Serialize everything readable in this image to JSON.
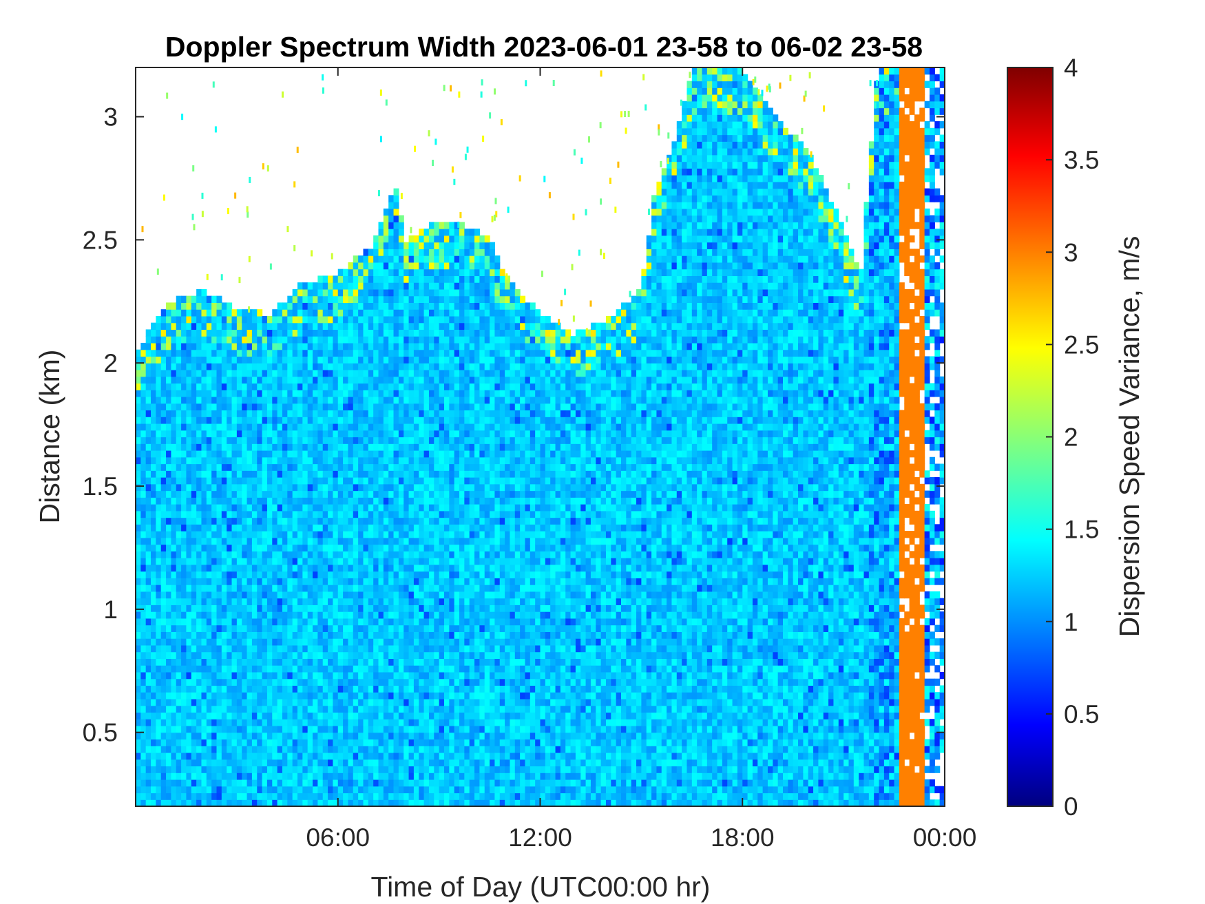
{
  "chart_data": {
    "type": "heatmap",
    "title": "Doppler Spectrum Width 2023-06-01 23-58 to 06-02 23-58",
    "xlabel": "Time of Day (UTC00:00 hr)",
    "ylabel": "Distance (km)",
    "colorbar_label": "Dispersion Speed Variance, m/s",
    "colormap": "jet",
    "xlim_hours": [
      0,
      24
    ],
    "ylim_km": [
      0.2,
      3.2
    ],
    "clim": [
      0,
      4
    ],
    "x_ticks": [
      {
        "value": 6,
        "label": "06:00"
      },
      {
        "value": 12,
        "label": "12:00"
      },
      {
        "value": 18,
        "label": "18:00"
      },
      {
        "value": 24,
        "label": "00:00"
      }
    ],
    "y_ticks": [
      {
        "value": 0.5,
        "label": "0.5"
      },
      {
        "value": 1,
        "label": "1"
      },
      {
        "value": 1.5,
        "label": "1.5"
      },
      {
        "value": 2,
        "label": "2"
      },
      {
        "value": 2.5,
        "label": "2.5"
      },
      {
        "value": 3,
        "label": "3"
      }
    ],
    "colorbar_ticks": [
      {
        "value": 0,
        "label": "0"
      },
      {
        "value": 0.5,
        "label": "0.5"
      },
      {
        "value": 1,
        "label": "1"
      },
      {
        "value": 1.5,
        "label": "1.5"
      },
      {
        "value": 2,
        "label": "2"
      },
      {
        "value": 2.5,
        "label": "2.5"
      },
      {
        "value": 3,
        "label": "3"
      },
      {
        "value": 3.5,
        "label": "3.5"
      },
      {
        "value": 4,
        "label": "4"
      }
    ],
    "typical_value": 1.3,
    "high_value_band": {
      "start_hour": 22.7,
      "end_hour": 23.4,
      "value": 3.0
    },
    "data_top_envelope_km": [
      [
        0,
        2.05
      ],
      [
        1,
        2.25
      ],
      [
        2,
        2.3
      ],
      [
        3,
        2.22
      ],
      [
        4,
        2.2
      ],
      [
        5,
        2.33
      ],
      [
        6,
        2.36
      ],
      [
        7,
        2.48
      ],
      [
        7.7,
        2.72
      ],
      [
        8,
        2.5
      ],
      [
        9,
        2.58
      ],
      [
        10,
        2.55
      ],
      [
        10.5,
        2.5
      ],
      [
        11,
        2.35
      ],
      [
        12,
        2.2
      ],
      [
        13,
        2.12
      ],
      [
        14,
        2.18
      ],
      [
        15,
        2.3
      ],
      [
        15.4,
        2.7
      ],
      [
        16,
        2.9
      ],
      [
        16.5,
        3.2
      ],
      [
        17.5,
        3.2
      ],
      [
        18,
        3.2
      ],
      [
        19,
        3.0
      ],
      [
        20,
        2.85
      ],
      [
        21,
        2.55
      ],
      [
        21.5,
        2.35
      ],
      [
        22,
        3.2
      ],
      [
        24,
        3.2
      ]
    ]
  }
}
